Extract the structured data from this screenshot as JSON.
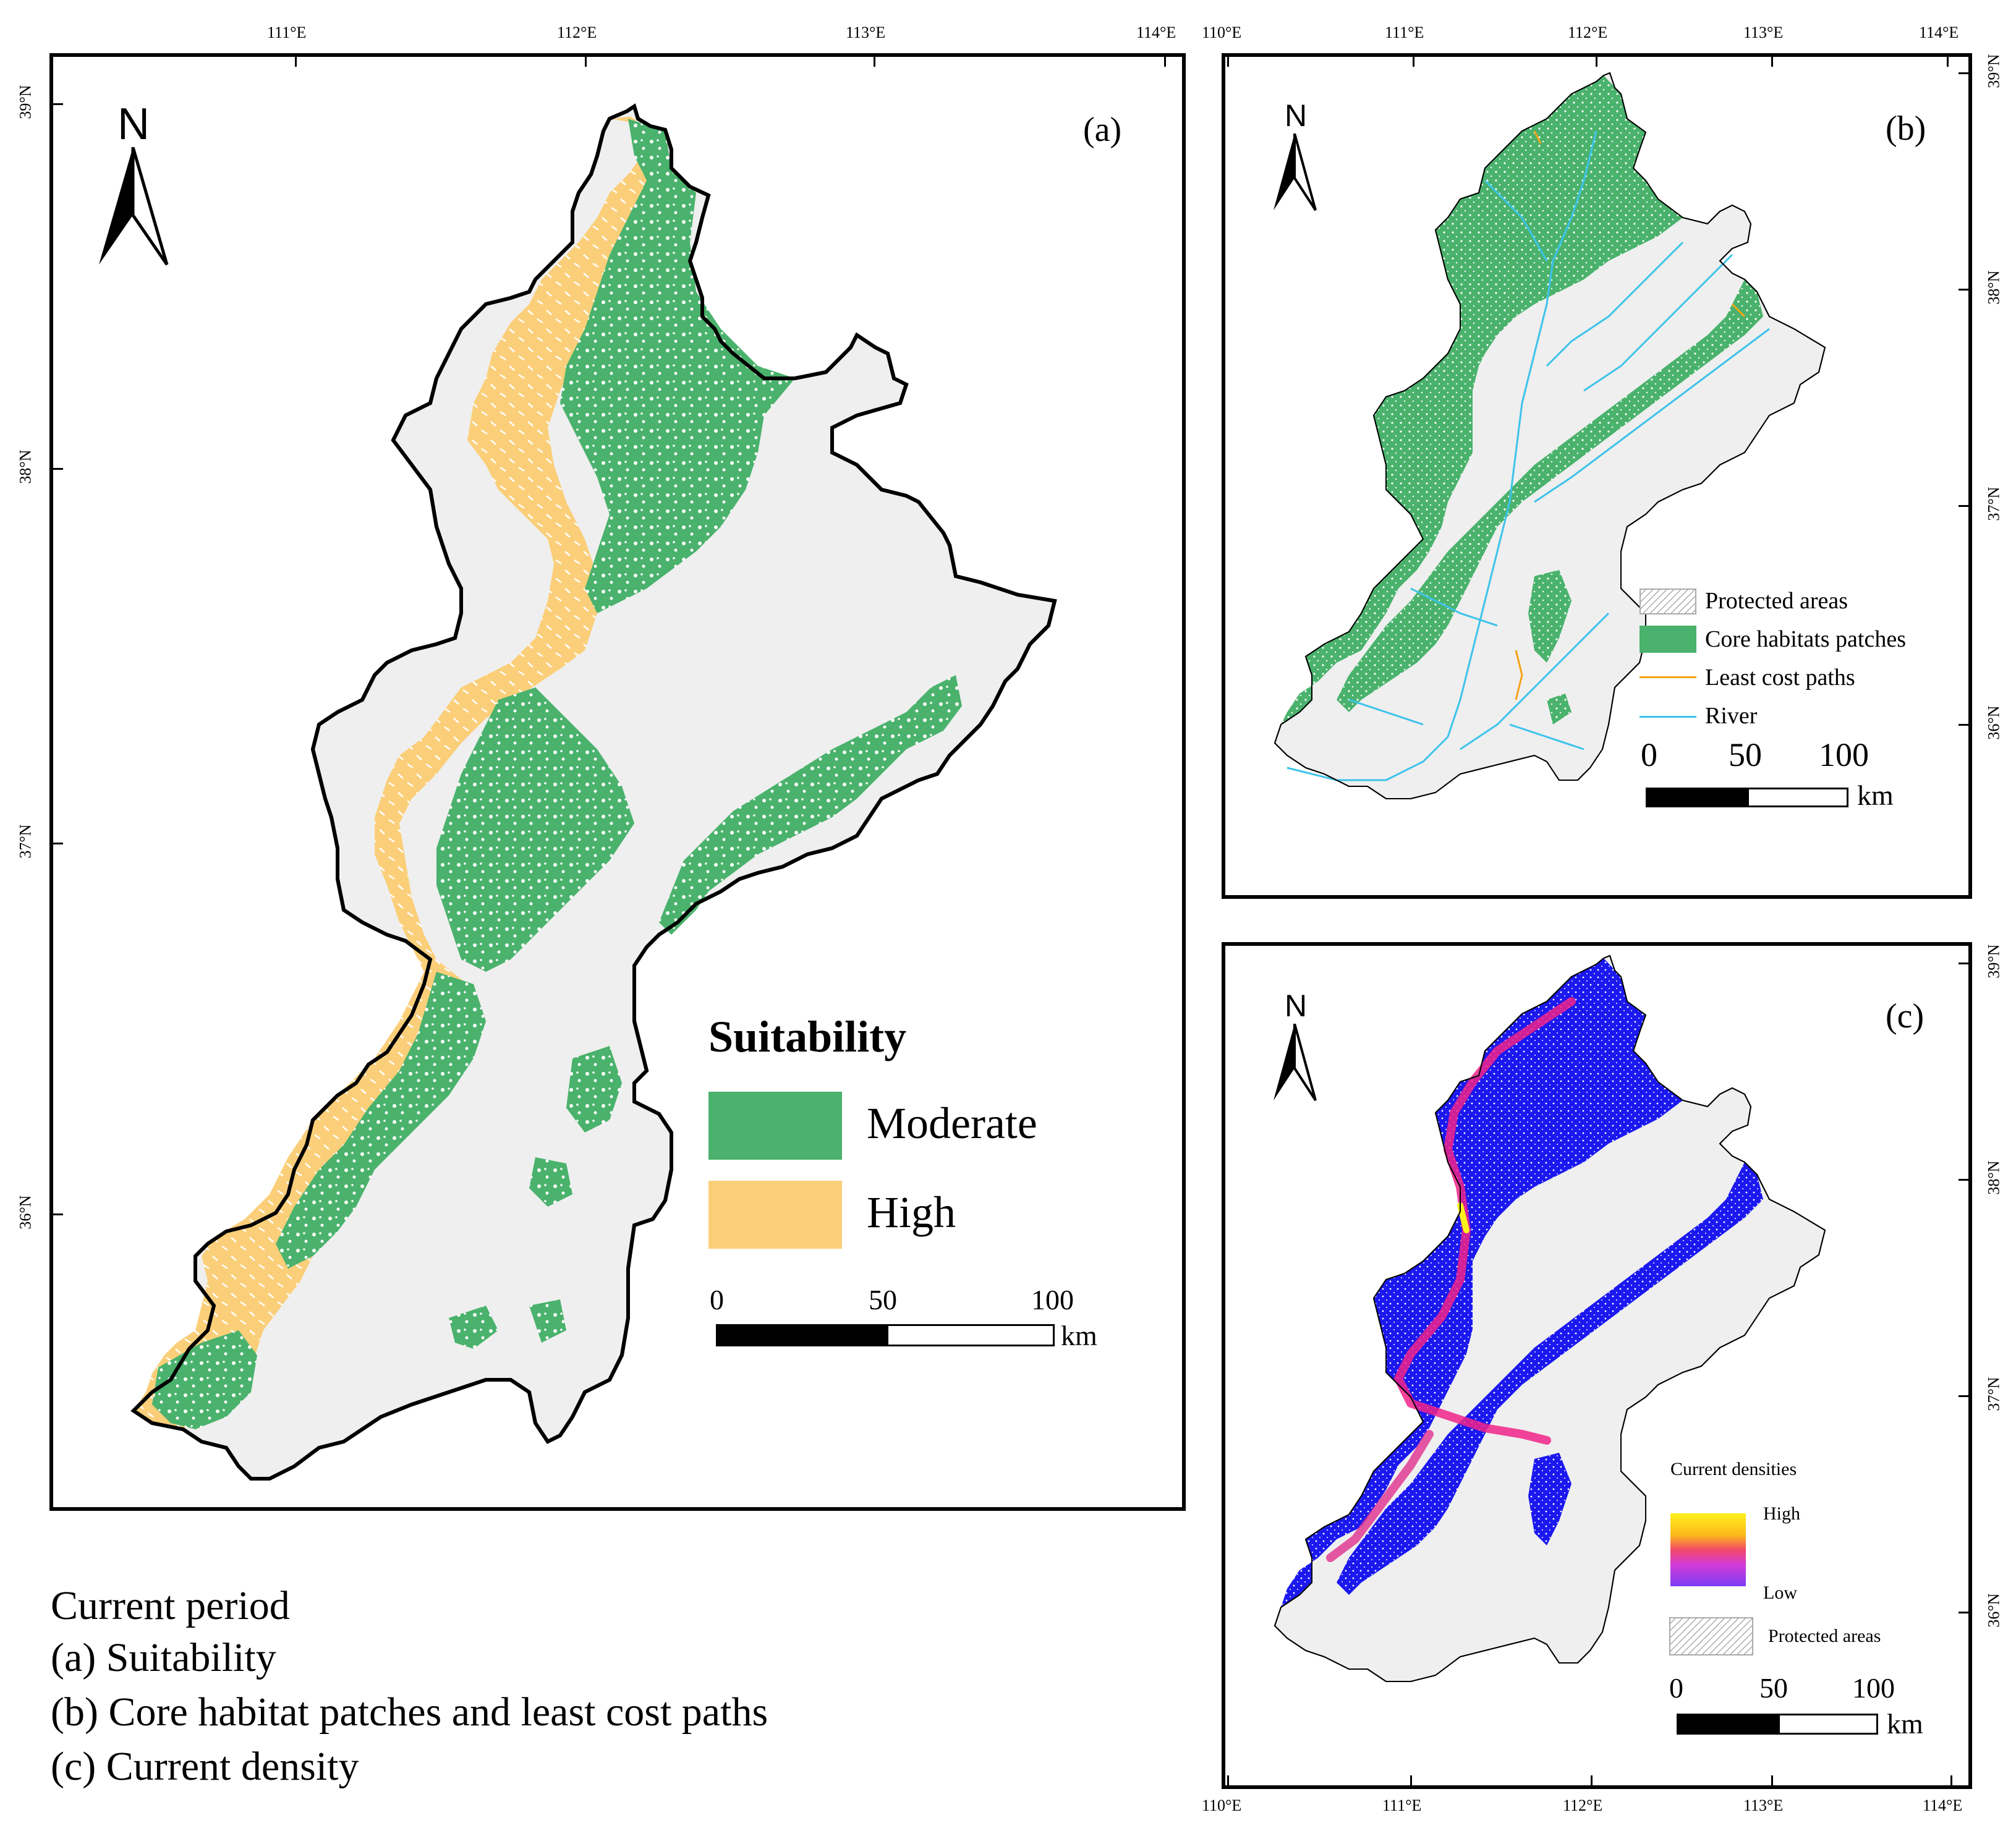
{
  "colors": {
    "moderate": "#4ab26c",
    "high": "#fbcf7a",
    "core": "#4ab26c",
    "least_cost": "#f4a316",
    "river": "#3cc3ea",
    "current_low": "#1b18f0",
    "current_high": "#fef11d",
    "land_grey": "#efefef"
  },
  "panel_a": {
    "letter": "(a)",
    "north": "N",
    "top_ticks": [
      "111°E",
      "112°E",
      "113°E",
      "114°E"
    ],
    "left_ticks": [
      "39°N",
      "38°N",
      "37°N",
      "36°N"
    ],
    "legend": {
      "title": "Suitability",
      "items": [
        {
          "label": "Moderate",
          "color_key": "moderate"
        },
        {
          "label": "High",
          "color_key": "high"
        }
      ],
      "scale": {
        "labels": [
          "0",
          "50",
          "100"
        ],
        "unit": "km"
      }
    }
  },
  "panel_b": {
    "letter": "(b)",
    "north": "N",
    "top_ticks": [
      "110°E",
      "111°E",
      "112°E",
      "113°E",
      "114°E"
    ],
    "right_ticks": [
      "39°N",
      "38°N",
      "37°N",
      "36°N"
    ],
    "legend": {
      "items": [
        {
          "label": "Protected areas",
          "kind": "hatch"
        },
        {
          "label": "Core habitats patches",
          "kind": "fill"
        },
        {
          "label": "Least cost paths",
          "kind": "line"
        },
        {
          "label": "River",
          "kind": "line"
        }
      ],
      "scale": {
        "labels": [
          "0",
          "50",
          "100"
        ],
        "unit": "km"
      }
    }
  },
  "panel_c": {
    "letter": "(c)",
    "north": "N",
    "bottom_ticks": [
      "110°E",
      "111°E",
      "112°E",
      "113°E",
      "114°E"
    ],
    "right_ticks": [
      "39°N",
      "38°N",
      "37°N",
      "36°N"
    ],
    "legend": {
      "title": "Current densities",
      "high": "High",
      "low": "Low",
      "protected": "Protected areas",
      "scale": {
        "labels": [
          "0",
          "50",
          "100"
        ],
        "unit": "km"
      }
    }
  },
  "caption": {
    "lines": [
      "Current period",
      "(a) Suitability",
      "(b) Core habitat patches and least cost paths",
      "(c) Current density"
    ]
  }
}
